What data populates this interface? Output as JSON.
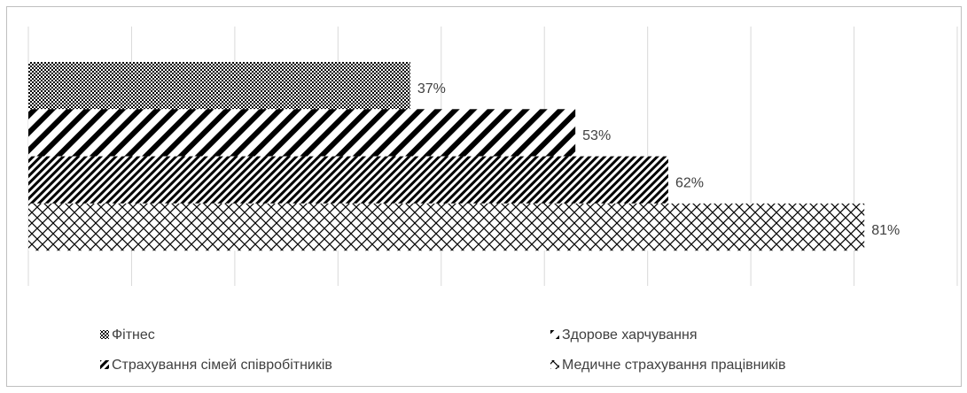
{
  "chart_data": {
    "type": "hbar",
    "series": [
      {
        "name": "Фітнес",
        "color": "#000000",
        "pattern": "checker",
        "values": [
          37
        ],
        "value_labels": [
          "37%"
        ]
      },
      {
        "name": "Здорове харчування",
        "color": "#000000",
        "pattern": "wide-diagonal",
        "values": [
          53
        ],
        "value_labels": [
          "53%"
        ]
      },
      {
        "name": "Страхування сімей співробітників",
        "color": "#000000",
        "pattern": "fine-diagonal",
        "values": [
          62
        ],
        "value_labels": [
          "62%"
        ]
      },
      {
        "name": "Медичне страхування працівників",
        "color": "#000000",
        "pattern": "crosshatch",
        "values": [
          81
        ],
        "value_labels": [
          "81%"
        ]
      }
    ],
    "xlim": [
      0,
      90
    ],
    "xticks": [
      0,
      10,
      20,
      30,
      40,
      50,
      60,
      70,
      80,
      90
    ],
    "grid": true,
    "legend": "bottom"
  }
}
